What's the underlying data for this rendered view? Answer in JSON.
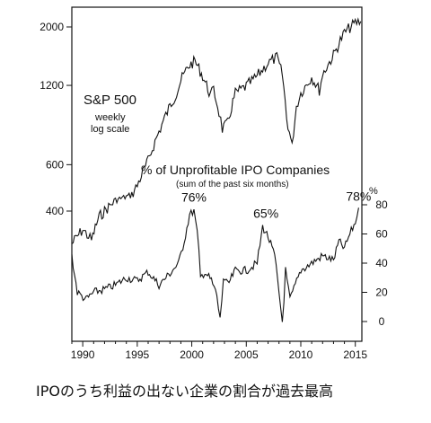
{
  "caption": "IPOのうち利益の出ない企業の割合が過去最高",
  "chart_data": [
    {
      "type": "line",
      "series": [
        {
          "name": "S&P 500",
          "x": [
            1989.0,
            1990.0,
            1990.8,
            1991.5,
            1993.0,
            1994.5,
            1995.0,
            1996.0,
            1997.0,
            1998.0,
            1998.6,
            1999.0,
            1999.7,
            2000.3,
            2001.0,
            2001.7,
            2002.0,
            2002.5,
            2002.8,
            2003.3,
            2004.0,
            2005.0,
            2006.0,
            2007.0,
            2007.8,
            2008.3,
            2008.7,
            2009.2,
            2009.6,
            2010.0,
            2011.0,
            2011.7,
            2012.0,
            2013.0,
            2014.0,
            2015.0,
            2015.5
          ],
          "y": [
            300,
            340,
            310,
            380,
            440,
            460,
            500,
            620,
            800,
            1000,
            1120,
            1250,
            1420,
            1480,
            1300,
            1100,
            1150,
            950,
            820,
            860,
            1120,
            1190,
            1300,
            1460,
            1530,
            1320,
            900,
            700,
            1000,
            1120,
            1290,
            1150,
            1320,
            1560,
            1900,
            2070,
            2100
          ]
        }
      ],
      "title": "S&P 500",
      "subtitle": "weekly\nlog scale",
      "y_scale": "log",
      "y_ticks": [
        400,
        600,
        1200,
        2000
      ],
      "x_ticks": [
        1990,
        1995,
        2000,
        2005,
        2010,
        2015
      ],
      "xlim": [
        1989.0,
        2015.6
      ]
    },
    {
      "type": "line",
      "series": [
        {
          "name": "% of Unprofitable IPO Companies",
          "x": [
            1989.0,
            1989.5,
            1990.3,
            1991.0,
            1992.0,
            1993.0,
            1994.0,
            1995.0,
            1996.0,
            1997.0,
            1998.0,
            1998.8,
            1999.3,
            1999.8,
            2000.2,
            2000.5,
            2000.8,
            2001.2,
            2001.8,
            2002.3,
            2002.6,
            2002.9,
            2003.3,
            2004.0,
            2005.0,
            2006.0,
            2006.5,
            2007.0,
            2007.6,
            2008.0,
            2008.3,
            2008.6,
            2009.0,
            2009.5,
            2010.0,
            2011.0,
            2012.0,
            2013.0,
            2013.5,
            2014.0,
            2014.5,
            2015.0,
            2015.3
          ],
          "y": [
            45,
            20,
            15,
            20,
            22,
            25,
            30,
            28,
            34,
            25,
            33,
            40,
            55,
            73,
            76,
            60,
            30,
            34,
            28,
            18,
            0,
            30,
            25,
            35,
            35,
            40,
            65,
            58,
            45,
            20,
            0,
            35,
            15,
            25,
            35,
            40,
            45,
            42,
            55,
            50,
            60,
            68,
            78
          ]
        }
      ],
      "title": "% of Unprofitable IPO Companies",
      "subtitle": "(sum of the past six months)",
      "y_unit": "%",
      "y_ticks": [
        0,
        20,
        40,
        60,
        80
      ],
      "ylim": [
        0,
        80
      ],
      "annotations": [
        {
          "text": "76%",
          "x": 2000.2,
          "y": 76
        },
        {
          "text": "65%",
          "x": 2006.8,
          "y": 65
        },
        {
          "text": "78%",
          "x": 2015.3,
          "y": 78
        }
      ],
      "x_ticks": [
        1990,
        1995,
        2000,
        2005,
        2010,
        2015
      ],
      "xlim": [
        1989.0,
        2015.6
      ]
    }
  ]
}
